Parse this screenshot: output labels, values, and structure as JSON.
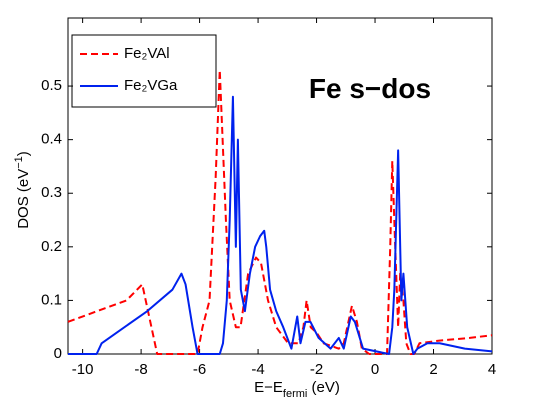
{
  "chart_data": {
    "type": "line",
    "title": "Fe s−dos",
    "x_label": {
      "text": "E−E",
      "sub": "fermi",
      "end": " (eV)"
    },
    "y_label": {
      "text": "DOS  (eV",
      "sup": "−1",
      "end": ")"
    },
    "xlim": [
      -10.5,
      4
    ],
    "ylim": [
      0,
      0.627
    ],
    "xticks": [
      -10,
      -8,
      -6,
      -4,
      -2,
      0,
      2,
      4
    ],
    "yticks": [
      0,
      0.1,
      0.2,
      0.3,
      0.4,
      0.5
    ],
    "legend": "upper-left",
    "series": [
      {
        "name": "Fe₂VAl",
        "color": "#ff0000",
        "dashed": true,
        "x": [
          -10.5,
          -9.5,
          -8.5,
          -7.96,
          -7.45,
          -6.07,
          -5.9,
          -5.66,
          -5.45,
          -5.31,
          -5.1,
          -4.97,
          -4.76,
          -4.6,
          -4.34,
          -4.07,
          -3.9,
          -3.66,
          -3.38,
          -2.97,
          -2.62,
          -2.45,
          -2.34,
          -2.2,
          -2.0,
          -1.76,
          -1.24,
          -1.07,
          -0.79,
          -0.62,
          -0.45,
          -0.2,
          0.41,
          0.52,
          0.59,
          0.69,
          0.79,
          0.86,
          0.97,
          1.07,
          1.21,
          1.34,
          1.52,
          2.2,
          3.24,
          4
        ],
        "values": [
          0.06,
          0.08,
          0.1,
          0.13,
          0,
          0,
          0.05,
          0.1,
          0.33,
          0.53,
          0.25,
          0.1,
          0.05,
          0.05,
          0.15,
          0.18,
          0.17,
          0.1,
          0.05,
          0.02,
          0.02,
          0.05,
          0.1,
          0.05,
          0.04,
          0.02,
          0.01,
          0.02,
          0.09,
          0.06,
          0.01,
          0,
          0,
          0.2,
          0.36,
          0.2,
          0.05,
          0.15,
          0.1,
          0.02,
          0,
          0,
          0.02,
          0.025,
          0.03,
          0.035
        ]
      },
      {
        "name": "Fe₂VGa",
        "color": "#0022ee",
        "dashed": false,
        "x": [
          -10.5,
          -9.52,
          -9.35,
          -8.83,
          -7.79,
          -6.93,
          -6.62,
          -6.48,
          -6.24,
          -6.07,
          -5.31,
          -5.2,
          -5.07,
          -4.97,
          -4.86,
          -4.76,
          -4.69,
          -4.59,
          -4.45,
          -4.28,
          -4.1,
          -3.93,
          -3.79,
          -3.72,
          -3.59,
          -3.38,
          -3.14,
          -2.86,
          -2.66,
          -2.55,
          -2.38,
          -2.21,
          -1.93,
          -1.52,
          -1.24,
          -1.07,
          -0.83,
          -0.69,
          -0.41,
          0.48,
          0.59,
          0.66,
          0.79,
          0.9,
          0.97,
          1.1,
          1.31,
          1.45,
          1.79,
          2.21,
          3.07,
          4
        ],
        "values": [
          0,
          0,
          0.02,
          0.04,
          0.08,
          0.12,
          0.15,
          0.13,
          0.05,
          0,
          0,
          0.02,
          0.1,
          0.25,
          0.48,
          0.2,
          0.4,
          0.12,
          0.08,
          0.15,
          0.2,
          0.22,
          0.23,
          0.2,
          0.12,
          0.08,
          0.05,
          0.01,
          0.07,
          0.02,
          0.06,
          0.06,
          0.03,
          0.01,
          0.03,
          0.01,
          0.07,
          0.06,
          0.01,
          0,
          0.05,
          0.12,
          0.38,
          0.1,
          0.15,
          0.05,
          0,
          0.01,
          0.02,
          0.02,
          0.01,
          0.005
        ]
      }
    ]
  }
}
